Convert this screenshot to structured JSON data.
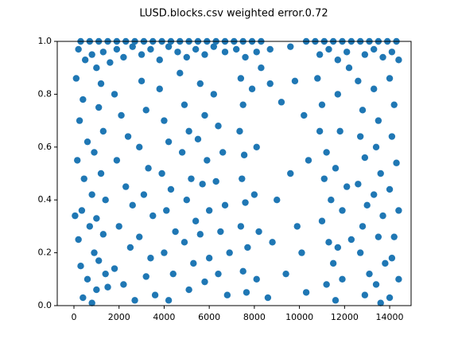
{
  "chart_data": {
    "type": "scatter",
    "title": "LUSD.blocks.csv weighted error.0.72",
    "color": "#1f77b4",
    "grid": false,
    "xlim": [
      -740,
      14950
    ],
    "ylim": [
      0,
      1
    ],
    "xticks": [
      0,
      2000,
      4000,
      6000,
      8000,
      10000,
      12000,
      14000
    ],
    "yticks": [
      {
        "value": 0,
        "label": "0.0"
      },
      0.2,
      0.4,
      0.6,
      0.8,
      {
        "value": 1,
        "label": "1.0"
      }
    ],
    "x": [
      300,
      700,
      1100,
      1500,
      1900,
      2300,
      2700,
      3100,
      3500,
      3900,
      4300,
      4700,
      5100,
      5500,
      5900,
      6300,
      6700,
      7100,
      7500,
      7900,
      8300,
      10300,
      10700,
      11100,
      11500,
      11900,
      12300,
      12700,
      13100,
      13500,
      13900,
      14300,
      200,
      500,
      800,
      1000,
      1300,
      1600,
      1900,
      2200,
      2600,
      3000,
      3400,
      3800,
      4200,
      4600,
      5000,
      5400,
      5800,
      6200,
      6700,
      7200,
      7600,
      8100,
      8700,
      9600,
      10900,
      11300,
      11700,
      12100,
      12900,
      13300,
      13700,
      14100,
      14400,
      100,
      400,
      250,
      600,
      150,
      450,
      800,
      350,
      50,
      700,
      200,
      900,
      300,
      600,
      1000,
      400,
      1200,
      1100,
      1300,
      900,
      1200,
      1400,
      1000,
      1300,
      1100,
      1400,
      800,
      1500,
      1800,
      2100,
      2400,
      1900,
      2300,
      2600,
      2000,
      2500,
      1800,
      2200,
      2700,
      3000,
      3200,
      2900,
      3300,
      3100,
      3500,
      2900,
      3400,
      3200,
      3600,
      3800,
      4000,
      4200,
      3900,
      4300,
      4100,
      4500,
      4000,
      4400,
      4200,
      4700,
      4900,
      5100,
      4800,
      5200,
      5000,
      5400,
      4900,
      5300,
      5100,
      5600,
      5800,
      5500,
      5900,
      5700,
      6000,
      5600,
      6000,
      5800,
      6200,
      6400,
      6600,
      6300,
      6700,
      6500,
      6900,
      6400,
      6800,
      7400,
      7500,
      7350,
      7550,
      7450,
      7600,
      7400,
      7700,
      7500,
      7650,
      7900,
      8100,
      8000,
      8200,
      8100,
      8300,
      8700,
      9200,
      9000,
      9600,
      8800,
      9400,
      9900,
      9800,
      10200,
      10100,
      10400,
      8600,
      10300,
      10800,
      11000,
      10900,
      11200,
      11100,
      11400,
      11000,
      11300,
      11500,
      11200,
      11600,
      11700,
      11800,
      11600,
      11900,
      11700,
      11900,
      12200,
      12300,
      12100,
      12600,
      12800,
      12700,
      12900,
      12600,
      13000,
      12800,
      12700,
      13100,
      12900,
      13300,
      13500,
      13400,
      13600,
      13300,
      13700,
      13500,
      13800,
      13400,
      13600,
      14000,
      14200,
      14100,
      14300,
      14000,
      14400,
      14200,
      14100,
      14400,
      14000
    ],
    "y": [
      1,
      1,
      1,
      1,
      1,
      1,
      1,
      1,
      1,
      1,
      1,
      1,
      1,
      1,
      1,
      1,
      1,
      1,
      1,
      1,
      1,
      1,
      1,
      1,
      1,
      1,
      1,
      1,
      1,
      1,
      1,
      1,
      0.97,
      0.93,
      0.95,
      0.9,
      0.96,
      0.92,
      0.97,
      0.94,
      0.98,
      0.95,
      0.97,
      0.93,
      0.98,
      0.96,
      0.94,
      0.97,
      0.95,
      0.98,
      0.96,
      0.97,
      0.94,
      0.96,
      0.97,
      0.98,
      0.95,
      0.97,
      0.93,
      0.96,
      0.95,
      0.97,
      0.94,
      0.96,
      0.93,
      0.86,
      0.78,
      0.7,
      0.62,
      0.55,
      0.48,
      0.42,
      0.36,
      0.34,
      0.3,
      0.25,
      0.2,
      0.15,
      0.1,
      0.06,
      0.03,
      0.84,
      0.75,
      0.66,
      0.58,
      0.5,
      0.4,
      0.33,
      0.27,
      0.17,
      0.12,
      0.01,
      0.07,
      0.8,
      0.72,
      0.64,
      0.55,
      0.45,
      0.38,
      0.3,
      0.22,
      0.14,
      0.08,
      0.02,
      0.85,
      0.74,
      0.6,
      0.52,
      0.42,
      0.34,
      0.26,
      0.18,
      0.11,
      0.04,
      0.82,
      0.7,
      0.62,
      0.5,
      0.44,
      0.36,
      0.28,
      0.2,
      0.12,
      0.02,
      0.88,
      0.76,
      0.66,
      0.58,
      0.48,
      0.4,
      0.32,
      0.24,
      0.16,
      0.06,
      0.84,
      0.72,
      0.63,
      0.55,
      0.46,
      0.36,
      0.27,
      0.18,
      0.09,
      0.8,
      0.68,
      0.58,
      0.47,
      0.38,
      0.28,
      0.2,
      0.12,
      0.04,
      0.86,
      0.76,
      0.66,
      0.57,
      0.48,
      0.39,
      0.3,
      0.22,
      0.13,
      0.05,
      0.82,
      0.6,
      0.42,
      0.28,
      0.1,
      0.9,
      0.84,
      0.77,
      0.4,
      0.5,
      0.24,
      0.12,
      0.3,
      0.85,
      0.72,
      0.2,
      0.55,
      0.03,
      0.05,
      0.86,
      0.76,
      0.66,
      0.58,
      0.48,
      0.4,
      0.32,
      0.24,
      0.16,
      0.08,
      0.02,
      0.8,
      0.66,
      0.52,
      0.36,
      0.22,
      0.1,
      0.9,
      0.25,
      0.45,
      0.85,
      0.74,
      0.64,
      0.56,
      0.46,
      0.38,
      0.3,
      0.2,
      0.12,
      0.04,
      0.82,
      0.7,
      0.6,
      0.5,
      0.42,
      0.34,
      0.26,
      0.16,
      0.08,
      0.01,
      0.86,
      0.76,
      0.64,
      0.54,
      0.44,
      0.36,
      0.26,
      0.18,
      0.1,
      0.03
    ]
  }
}
